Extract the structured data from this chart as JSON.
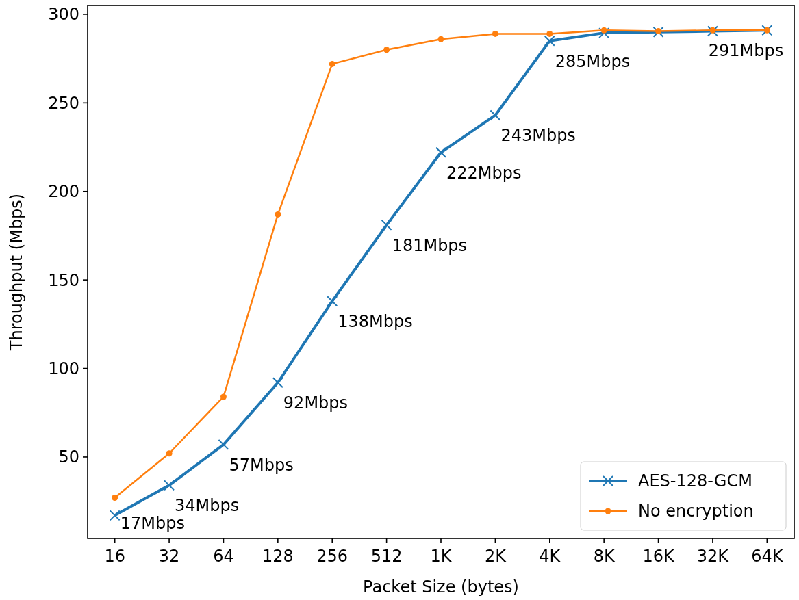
{
  "chart_data": {
    "type": "line",
    "xlabel": "Packet Size (bytes)",
    "ylabel": "Throughput (Mbps)",
    "categories": [
      "16",
      "32",
      "64",
      "128",
      "256",
      "512",
      "1K",
      "2K",
      "4K",
      "8K",
      "16K",
      "32K",
      "64K"
    ],
    "series": [
      {
        "name": "AES-128-GCM",
        "color": "#1f77b4",
        "marker": "cross",
        "values": [
          17,
          34,
          57,
          92,
          138,
          181,
          222,
          243,
          285,
          289.5,
          290,
          290.5,
          291
        ],
        "value_labels": [
          "17Mbps",
          "34Mbps",
          "57Mbps",
          "92Mbps",
          "138Mbps",
          "181Mbps",
          "222Mbps",
          "243Mbps",
          "285Mbps",
          null,
          null,
          null,
          "291Mbps"
        ]
      },
      {
        "name": "No encryption",
        "color": "#ff7f0e",
        "marker": "circle",
        "values": [
          27,
          52,
          84,
          187,
          272,
          280,
          286,
          289,
          289,
          291,
          290.5,
          291,
          291
        ]
      }
    ],
    "ylim": [
      4,
      305
    ],
    "yticks": [
      50,
      100,
      150,
      200,
      250,
      300
    ],
    "grid": false,
    "legend": "bottom right",
    "line_style": "solid"
  }
}
